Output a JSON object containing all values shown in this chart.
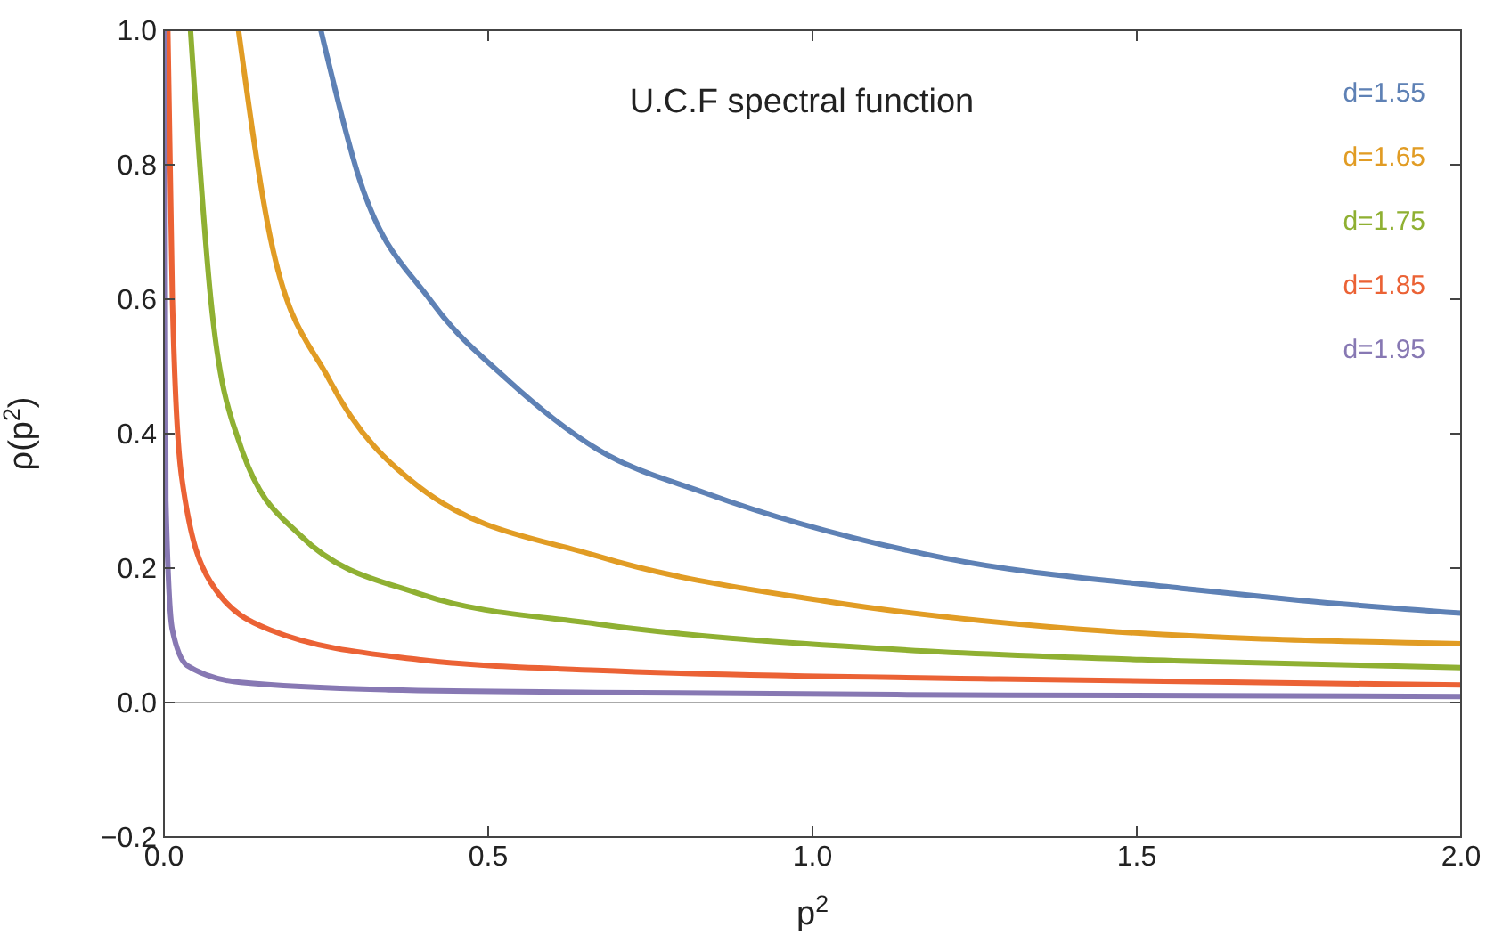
{
  "chart_data": {
    "type": "line",
    "title": "U.C.F spectral function",
    "xlabel": "p$^{2}$",
    "ylabel": "ρ(p$^{2}$)",
    "xlim": [
      0,
      2
    ],
    "ylim": [
      -0.2,
      1.0
    ],
    "xticks": [
      {
        "value": 0,
        "label": "0.0"
      },
      0.5,
      {
        "value": 1,
        "label": "1.0"
      },
      1.5,
      {
        "value": 2,
        "label": "2.0"
      }
    ],
    "yticks": [
      {
        "value": -0.2,
        "label": "−0.2"
      },
      {
        "value": 0,
        "label": "0.0"
      },
      0.2,
      0.4,
      0.6,
      0.8,
      {
        "value": 1,
        "label": "1.0"
      }
    ],
    "grid": false,
    "legend": "top right",
    "line_style": "solid",
    "marker": "none",
    "ref_lines": [
      {
        "axis": "y",
        "value": 0,
        "color": "#aaaaaa"
      }
    ],
    "series": [
      {
        "name": "d=1.55",
        "color": "#5e81b5",
        "x": [
          0.242,
          0.301,
          0.412,
          0.53,
          0.668,
          0.837,
          1.203,
          1.569,
          1.753,
          2.0
        ],
        "values": [
          1.0,
          0.78,
          0.597,
          0.48,
          0.377,
          0.311,
          0.215,
          0.17,
          0.152,
          0.133
        ]
      },
      {
        "name": "d=1.65",
        "color": "#e19c24",
        "x": [
          0.115,
          0.164,
          0.255,
          0.393,
          0.668,
          1.019,
          1.387,
          2.0
        ],
        "values": [
          1.0,
          0.692,
          0.48,
          0.321,
          0.218,
          0.151,
          0.111,
          0.0875
        ]
      },
      {
        "name": "d=1.75",
        "color": "#8fb032",
        "x": [
          0.041,
          0.072,
          0.118,
          0.21,
          0.393,
          0.668,
          1.112,
          1.569,
          2.0
        ],
        "values": [
          1.0,
          0.602,
          0.382,
          0.249,
          0.162,
          0.117,
          0.08,
          0.062,
          0.052
        ]
      },
      {
        "name": "d=1.85",
        "color": "#eb6235",
        "x": [
          0.006,
          0.013,
          0.027,
          0.072,
          0.164,
          0.393,
          0.668,
          1.288,
          2.0
        ],
        "values": [
          1.0,
          0.602,
          0.338,
          0.179,
          0.108,
          0.064,
          0.048,
          0.035,
          0.026
        ]
      },
      {
        "name": "d=1.95",
        "color": "#8778b3",
        "x": [
          0.001,
          0.003,
          0.013,
          0.036,
          0.118,
          0.346,
          0.668,
          1.3,
          2.0
        ],
        "values": [
          1.0,
          0.3,
          0.108,
          0.055,
          0.03,
          0.019,
          0.015,
          0.011,
          0.009
        ]
      }
    ]
  }
}
